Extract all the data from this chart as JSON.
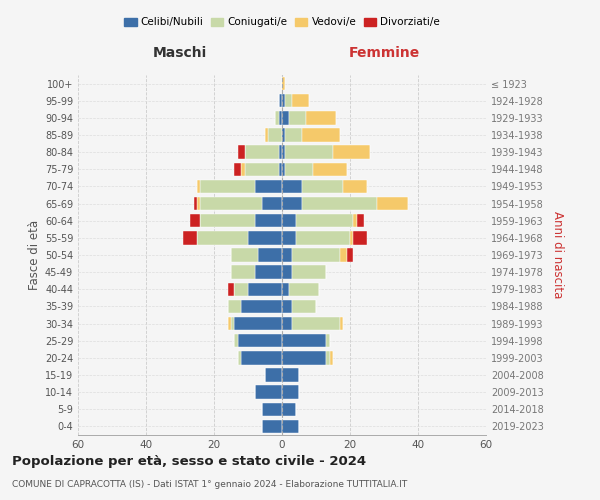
{
  "age_groups": [
    "0-4",
    "5-9",
    "10-14",
    "15-19",
    "20-24",
    "25-29",
    "30-34",
    "35-39",
    "40-44",
    "45-49",
    "50-54",
    "55-59",
    "60-64",
    "65-69",
    "70-74",
    "75-79",
    "80-84",
    "85-89",
    "90-94",
    "95-99",
    "100+"
  ],
  "birth_years": [
    "2019-2023",
    "2014-2018",
    "2009-2013",
    "2004-2008",
    "1999-2003",
    "1994-1998",
    "1989-1993",
    "1984-1988",
    "1979-1983",
    "1974-1978",
    "1969-1973",
    "1964-1968",
    "1959-1963",
    "1954-1958",
    "1949-1953",
    "1944-1948",
    "1939-1943",
    "1934-1938",
    "1929-1933",
    "1924-1928",
    "≤ 1923"
  ],
  "maschi": {
    "celibi": [
      6,
      6,
      8,
      5,
      12,
      13,
      14,
      12,
      10,
      8,
      7,
      10,
      8,
      6,
      8,
      1,
      1,
      0,
      1,
      1,
      0
    ],
    "coniugati": [
      0,
      0,
      0,
      0,
      1,
      1,
      1,
      4,
      4,
      7,
      8,
      15,
      16,
      18,
      16,
      10,
      10,
      4,
      1,
      0,
      0
    ],
    "vedovi": [
      0,
      0,
      0,
      0,
      0,
      0,
      1,
      0,
      0,
      0,
      0,
      0,
      0,
      1,
      1,
      1,
      0,
      1,
      0,
      0,
      0
    ],
    "divorziati": [
      0,
      0,
      0,
      0,
      0,
      0,
      0,
      0,
      2,
      0,
      0,
      4,
      3,
      1,
      0,
      2,
      2,
      0,
      0,
      0,
      0
    ]
  },
  "femmine": {
    "nubili": [
      5,
      4,
      5,
      5,
      13,
      13,
      3,
      3,
      2,
      3,
      3,
      4,
      4,
      6,
      6,
      1,
      1,
      1,
      2,
      1,
      0
    ],
    "coniugate": [
      0,
      0,
      0,
      0,
      1,
      1,
      14,
      7,
      9,
      10,
      14,
      16,
      17,
      22,
      12,
      8,
      14,
      5,
      5,
      2,
      0
    ],
    "vedove": [
      0,
      0,
      0,
      0,
      1,
      0,
      1,
      0,
      0,
      0,
      2,
      1,
      1,
      9,
      7,
      10,
      11,
      11,
      9,
      5,
      1
    ],
    "divorziate": [
      0,
      0,
      0,
      0,
      0,
      0,
      0,
      0,
      0,
      0,
      2,
      4,
      2,
      0,
      0,
      0,
      0,
      0,
      0,
      0,
      0
    ]
  },
  "colors": {
    "celibi": "#3d6fa8",
    "coniugati": "#c8d9a8",
    "vedovi": "#f5c96a",
    "divorziati": "#cc2222"
  },
  "title": "Popolazione per età, sesso e stato civile - 2024",
  "subtitle": "COMUNE DI CAPRACOTTA (IS) - Dati ISTAT 1° gennaio 2024 - Elaborazione TUTTITALIA.IT",
  "xlabel_left": "Maschi",
  "xlabel_right": "Femmine",
  "ylabel_left": "Fasce di età",
  "ylabel_right": "Anni di nascita",
  "xlim": 60,
  "legend_labels": [
    "Celibi/Nubili",
    "Coniugati/e",
    "Vedovi/e",
    "Divorziati/e"
  ],
  "background_color": "#f5f5f5"
}
